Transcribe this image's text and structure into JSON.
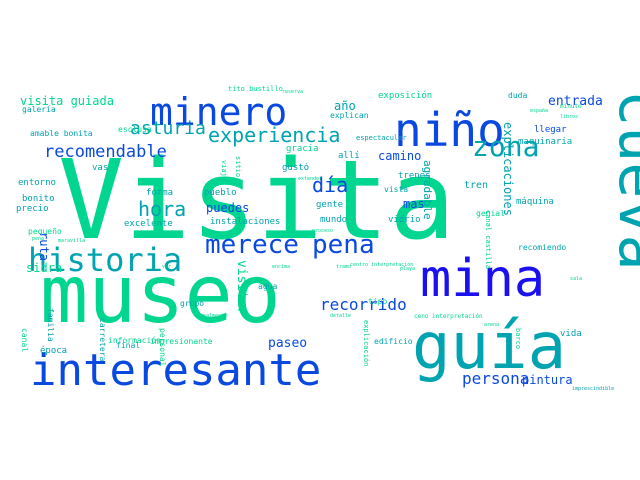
{
  "colors": {
    "green": "#00D68F",
    "teal": "#00A3B0",
    "mid": "#0087C6",
    "blue": "#0A49E0",
    "deep": "#1A10F0"
  },
  "words": [
    {
      "text": "Visita",
      "color": "green"
    },
    {
      "text": "museo",
      "color": "green"
    },
    {
      "text": "guía",
      "color": "teal"
    },
    {
      "text": "mina",
      "color": "deep"
    },
    {
      "text": "cueva",
      "color": "teal"
    },
    {
      "text": "niño",
      "color": "blue"
    },
    {
      "text": "minero",
      "color": "blue"
    },
    {
      "text": "interesante",
      "color": "blue"
    },
    {
      "text": "historia",
      "color": "teal"
    },
    {
      "text": "merece",
      "color": "blue"
    },
    {
      "text": "pena",
      "color": "blue"
    },
    {
      "text": "zona",
      "color": "teal"
    },
    {
      "text": "experiencia",
      "color": "teal"
    },
    {
      "text": "asturia",
      "color": "teal"
    },
    {
      "text": "recomendable",
      "color": "blue"
    },
    {
      "text": "día",
      "color": "blue"
    },
    {
      "text": "hora",
      "color": "teal"
    },
    {
      "text": "recorrido",
      "color": "blue"
    },
    {
      "text": "persona",
      "color": "blue"
    },
    {
      "text": "visita guiada",
      "color": "green"
    },
    {
      "text": "entrada",
      "color": "blue"
    },
    {
      "text": "explicaciones",
      "color": "teal"
    },
    {
      "text": "agradable",
      "color": "teal"
    },
    {
      "text": "visitar",
      "color": "green"
    },
    {
      "text": "paseo",
      "color": "blue"
    },
    {
      "text": "pintura",
      "color": "blue"
    },
    {
      "text": "ruta",
      "color": "blue"
    },
    {
      "text": "sidra",
      "color": "green"
    },
    {
      "text": "puedes",
      "color": "blue"
    },
    {
      "text": "camino",
      "color": "blue"
    },
    {
      "text": "mas",
      "color": "blue"
    },
    {
      "text": "año",
      "color": "teal"
    },
    {
      "text": "tren",
      "color": "teal"
    },
    {
      "text": "llegar",
      "color": "blue"
    },
    {
      "text": "maquinaria",
      "color": "teal"
    },
    {
      "text": "exposición",
      "color": "green"
    },
    {
      "text": "tito bustillo",
      "color": "green"
    },
    {
      "text": "duda",
      "color": "teal"
    },
    {
      "text": "minuto",
      "color": "green"
    },
    {
      "text": "galería",
      "color": "teal"
    },
    {
      "text": "explican",
      "color": "teal"
    },
    {
      "text": "amable bonita",
      "color": "teal"
    },
    {
      "text": "esclusa",
      "color": "green"
    },
    {
      "text": "espectacular",
      "color": "teal"
    },
    {
      "text": "gracia",
      "color": "green"
    },
    {
      "text": "allí",
      "color": "teal"
    },
    {
      "text": "gustó",
      "color": "teal"
    },
    {
      "text": "trenes",
      "color": "teal"
    },
    {
      "text": "vas",
      "color": "teal"
    },
    {
      "text": "entorno",
      "color": "teal"
    },
    {
      "text": "bonito",
      "color": "teal"
    },
    {
      "text": "precio",
      "color": "teal"
    },
    {
      "text": "forma",
      "color": "teal"
    },
    {
      "text": "pueblo",
      "color": "teal"
    },
    {
      "text": "excelente",
      "color": "teal"
    },
    {
      "text": "instalaciones",
      "color": "teal"
    },
    {
      "text": "gente",
      "color": "teal"
    },
    {
      "text": "mundo",
      "color": "teal"
    },
    {
      "text": "vidrio",
      "color": "teal"
    },
    {
      "text": "vista",
      "color": "teal"
    },
    {
      "text": "genial",
      "color": "green"
    },
    {
      "text": "máquina",
      "color": "teal"
    },
    {
      "text": "recomiendo",
      "color": "teal"
    },
    {
      "text": "pequeño",
      "color": "green"
    },
    {
      "text": "agua",
      "color": "teal"
    },
    {
      "text": "grupo",
      "color": "teal"
    },
    {
      "text": "personal",
      "color": "green"
    },
    {
      "text": "información",
      "color": "green"
    },
    {
      "text": "carretera",
      "color": "teal"
    },
    {
      "text": "familia",
      "color": "teal"
    },
    {
      "text": "canal",
      "color": "green"
    },
    {
      "text": "época",
      "color": "teal"
    },
    {
      "text": "final",
      "color": "teal"
    },
    {
      "text": "impresionante",
      "color": "green"
    },
    {
      "text": "edificio",
      "color": "teal"
    },
    {
      "text": "explicación",
      "color": "green"
    },
    {
      "text": "tipo",
      "color": "green"
    },
    {
      "text": "barco",
      "color": "green"
    },
    {
      "text": "vida",
      "color": "teal"
    },
    {
      "text": "canal castilla",
      "color": "green"
    },
    {
      "text": "viaje",
      "color": "green"
    },
    {
      "text": "sitio",
      "color": "green"
    },
    {
      "text": "reserva",
      "color": "green"
    },
    {
      "text": "extender",
      "color": "green"
    },
    {
      "text": "ceno interpretación",
      "color": "green"
    },
    {
      "text": "libros",
      "color": "green"
    },
    {
      "text": "españa",
      "color": "green"
    },
    {
      "text": "proceso",
      "color": "green"
    },
    {
      "text": "pena",
      "color": "green"
    },
    {
      "text": "maravilla",
      "color": "green"
    },
    {
      "text": "ver",
      "color": "green"
    },
    {
      "text": "encima",
      "color": "green"
    },
    {
      "text": "tramo",
      "color": "green"
    },
    {
      "text": "centro interpretación",
      "color": "green"
    },
    {
      "text": "playa",
      "color": "green"
    },
    {
      "text": "sala",
      "color": "green"
    },
    {
      "text": "detalle",
      "color": "green"
    },
    {
      "text": "realmente",
      "color": "green"
    },
    {
      "text": "imprescindible",
      "color": "teal"
    },
    {
      "text": "arena",
      "color": "green"
    }
  ]
}
